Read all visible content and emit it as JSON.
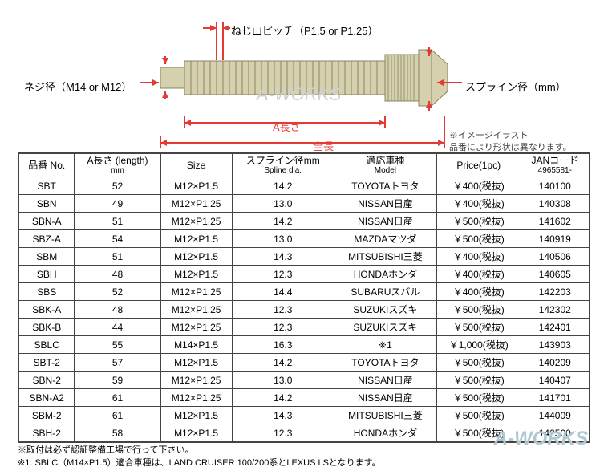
{
  "diagram": {
    "pitch_label": "ねじ山ピッチ（P1.5 or P1.25）",
    "neji_label": "ネジ径（M14 or M12）",
    "spline_label": "スプライン径（mm）",
    "a_label": "A長さ",
    "zenchou_label": "全長",
    "note_line1": "※イメージイラスト",
    "note_line2": "品番により形状は異なります。",
    "bolt_fill": "#d5d0ad",
    "bolt_stroke": "#8a8560",
    "watermark": "A-WORKS",
    "arrow_color": "#e53935"
  },
  "table": {
    "headers": {
      "no": "品番 No.",
      "length": "A長さ (length)",
      "length_sub": "mm",
      "size": "Size",
      "spline": "スプライン径mm",
      "spline_sub": "Spline dia.",
      "model": "適応車種",
      "model_sub": "Model",
      "price": "Price(1pc)",
      "jan": "JANコード",
      "jan_sub": "4965581-"
    },
    "rows": [
      {
        "no": "SBT",
        "len": "52",
        "size": "M12×P1.5",
        "spl": "14.2",
        "model": "TOYOTAトヨタ",
        "price": "￥400(税抜)",
        "jan": "140100"
      },
      {
        "no": "SBN",
        "len": "49",
        "size": "M12×P1.25",
        "spl": "13.0",
        "model": "NISSAN日産",
        "price": "￥400(税抜)",
        "jan": "140308"
      },
      {
        "no": "SBN-A",
        "len": "51",
        "size": "M12×P1.25",
        "spl": "14.2",
        "model": "NISSAN日産",
        "price": "￥500(税抜)",
        "jan": "141602"
      },
      {
        "no": "SBZ-A",
        "len": "54",
        "size": "M12×P1.5",
        "spl": "13.0",
        "model": "MAZDAマツダ",
        "price": "￥500(税抜)",
        "jan": "140919"
      },
      {
        "no": "SBM",
        "len": "51",
        "size": "M12×P1.5",
        "spl": "14.3",
        "model": "MITSUBISHI三菱",
        "price": "￥400(税抜)",
        "jan": "140506"
      },
      {
        "no": "SBH",
        "len": "48",
        "size": "M12×P1.5",
        "spl": "12.3",
        "model": "HONDAホンダ",
        "price": "￥400(税抜)",
        "jan": "140605"
      },
      {
        "no": "SBS",
        "len": "52",
        "size": "M12×P1.25",
        "spl": "14.4",
        "model": "SUBARUスバル",
        "price": "￥400(税抜)",
        "jan": "142203"
      },
      {
        "no": "SBK-A",
        "len": "48",
        "size": "M12×P1.25",
        "spl": "12.3",
        "model": "SUZUKIスズキ",
        "price": "￥500(税抜)",
        "jan": "142302"
      },
      {
        "no": "SBK-B",
        "len": "44",
        "size": "M12×P1.25",
        "spl": "12.3",
        "model": "SUZUKIスズキ",
        "price": "￥500(税抜)",
        "jan": "142401"
      },
      {
        "no": "SBLC",
        "len": "55",
        "size": "M14×P1.5",
        "spl": "16.3",
        "model": "※1",
        "price": "￥1,000(税抜)",
        "jan": "143903"
      },
      {
        "no": "SBT-2",
        "len": "57",
        "size": "M12×P1.5",
        "spl": "14.2",
        "model": "TOYOTAトヨタ",
        "price": "￥500(税抜)",
        "jan": "140209"
      },
      {
        "no": "SBN-2",
        "len": "59",
        "size": "M12×P1.25",
        "spl": "13.0",
        "model": "NISSAN日産",
        "price": "￥500(税抜)",
        "jan": "140407"
      },
      {
        "no": "SBN-A2",
        "len": "61",
        "size": "M12×P1.25",
        "spl": "14.2",
        "model": "NISSAN日産",
        "price": "￥500(税抜)",
        "jan": "141701"
      },
      {
        "no": "SBM-2",
        "len": "61",
        "size": "M12×P1.5",
        "spl": "14.3",
        "model": "MITSUBISHI三菱",
        "price": "￥500(税抜)",
        "jan": "144009"
      },
      {
        "no": "SBH-2",
        "len": "58",
        "size": "M12×P1.5",
        "spl": "12.3",
        "model": "HONDAホンダ",
        "price": "￥500(税抜)",
        "jan": "142500"
      }
    ]
  },
  "footnotes": {
    "line1": "※取付は必ず認証整備工場で行って下さい。",
    "line2": "※1: SBLC（M14×P1.5）適合車種は、LAND CRUISER 100/200系とLEXUS LSとなります。"
  }
}
